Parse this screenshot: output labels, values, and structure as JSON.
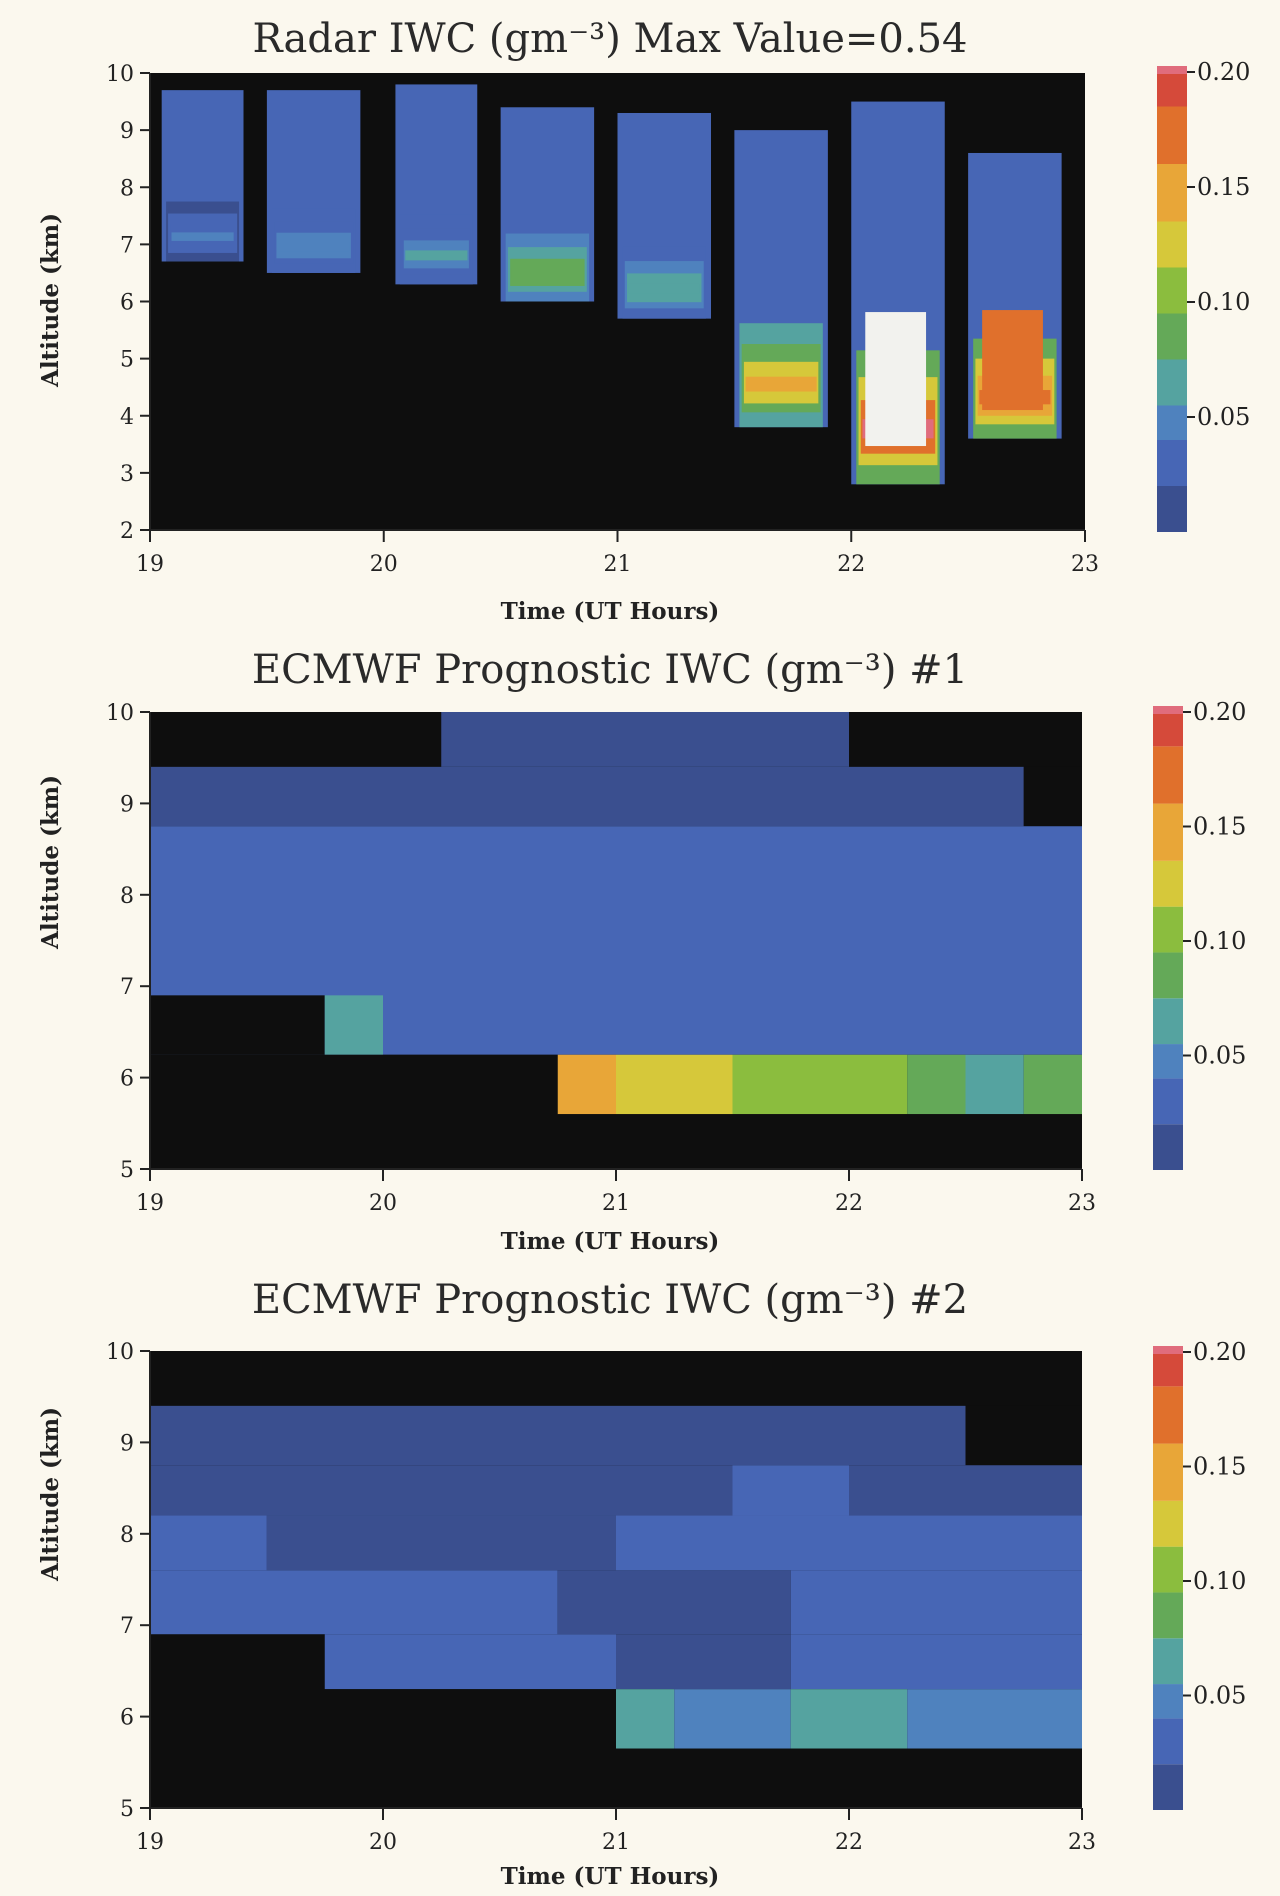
{
  "chart_data": [
    {
      "type": "heatmap",
      "title": "Radar IWC (gm⁻³)   Max Value=0.54",
      "xlabel": "Time (UT Hours)",
      "ylabel": "Altitude (km)",
      "xlim": [
        19,
        23
      ],
      "ylim": [
        2,
        10
      ],
      "xticks": [
        "19",
        "20",
        "21",
        "22",
        "23"
      ],
      "yticks": [
        "2",
        "3",
        "4",
        "5",
        "6",
        "7",
        "8",
        "9",
        "10"
      ],
      "colorbar": {
        "range": [
          0,
          0.2
        ],
        "ticks": [
          "0.05",
          "0.10",
          "0.15",
          "0.20"
        ]
      },
      "max_value": 0.54,
      "bands": [
        {
          "x0": 19.05,
          "x1": 19.4,
          "ybase": 6.7,
          "ytop": 9.7,
          "core": 0.03,
          "peak": 0.04
        },
        {
          "x0": 19.5,
          "x1": 19.9,
          "ybase": 6.5,
          "ytop": 9.7,
          "core": 0.03,
          "peak": 0.05
        },
        {
          "x0": 20.05,
          "x1": 20.4,
          "ybase": 6.3,
          "ytop": 9.8,
          "core": 0.03,
          "peak": 0.06
        },
        {
          "x0": 20.5,
          "x1": 20.9,
          "ybase": 6.0,
          "ytop": 9.4,
          "core": 0.03,
          "peak": 0.09
        },
        {
          "x0": 21.0,
          "x1": 21.4,
          "ybase": 5.7,
          "ytop": 9.3,
          "core": 0.03,
          "peak": 0.07
        },
        {
          "x0": 21.5,
          "x1": 21.9,
          "ybase": 3.8,
          "ytop": 9.0,
          "core": 0.03,
          "peak": 0.14
        },
        {
          "x0": 22.0,
          "x1": 22.4,
          "ybase": 2.8,
          "ytop": 9.5,
          "core": 0.03,
          "peak": 0.2
        },
        {
          "x0": 22.5,
          "x1": 22.9,
          "ybase": 3.6,
          "ytop": 8.6,
          "core": 0.03,
          "peak": 0.18
        }
      ]
    },
    {
      "type": "heatmap",
      "title": "ECMWF Prognostic IWC (gm⁻³) #1",
      "xlabel": "Time (UT Hours)",
      "ylabel": "Altitude (km)",
      "xlim": [
        19,
        23
      ],
      "ylim": [
        5,
        10
      ],
      "xticks": [
        "19",
        "20",
        "21",
        "22",
        "23"
      ],
      "yticks": [
        "5",
        "6",
        "7",
        "8",
        "9",
        "10"
      ],
      "colorbar": {
        "range": [
          0,
          0.2
        ],
        "ticks": [
          "0.05",
          "0.10",
          "0.15",
          "0.20"
        ]
      },
      "cells": [
        {
          "x0": 19,
          "x1": 20.25,
          "y0": 9.4,
          "y1": 10,
          "v": null
        },
        {
          "x0": 20.25,
          "x1": 22.0,
          "y0": 9.4,
          "y1": 10,
          "v": 0.01
        },
        {
          "x0": 22.0,
          "x1": 23,
          "y0": 9.4,
          "y1": 10,
          "v": null
        },
        {
          "x0": 19,
          "x1": 22.75,
          "y0": 8.75,
          "y1": 9.4,
          "v": 0.01
        },
        {
          "x0": 22.75,
          "x1": 23,
          "y0": 8.75,
          "y1": 9.4,
          "v": null
        },
        {
          "x0": 19,
          "x1": 23,
          "y0": 6.25,
          "y1": 8.75,
          "v": 0.025
        },
        {
          "x0": 19,
          "x1": 19.75,
          "y0": 6.25,
          "y1": 6.9,
          "v": null
        },
        {
          "x0": 19.75,
          "x1": 20.0,
          "y0": 6.25,
          "y1": 6.9,
          "v": 0.06
        },
        {
          "x0": 19,
          "x1": 20.75,
          "y0": 5,
          "y1": 6.25,
          "v": null
        },
        {
          "x0": 20.75,
          "x1": 21.0,
          "y0": 5.6,
          "y1": 6.25,
          "v": 0.14
        },
        {
          "x0": 21.0,
          "x1": 21.5,
          "y0": 5.6,
          "y1": 6.25,
          "v": 0.12
        },
        {
          "x0": 21.5,
          "x1": 22.25,
          "y0": 5.6,
          "y1": 6.25,
          "v": 0.1
        },
        {
          "x0": 22.25,
          "x1": 22.5,
          "y0": 5.6,
          "y1": 6.25,
          "v": 0.085
        },
        {
          "x0": 22.5,
          "x1": 22.75,
          "y0": 5.6,
          "y1": 6.25,
          "v": 0.07
        },
        {
          "x0": 22.75,
          "x1": 23,
          "y0": 5.6,
          "y1": 6.25,
          "v": 0.09
        },
        {
          "x0": 20.75,
          "x1": 23,
          "y0": 5,
          "y1": 5.6,
          "v": null
        }
      ]
    },
    {
      "type": "heatmap",
      "title": "ECMWF Prognostic IWC (gm⁻³) #2",
      "xlabel": "Time (UT Hours)",
      "ylabel": "Altitude (km)",
      "xlim": [
        19,
        23
      ],
      "ylim": [
        5,
        10
      ],
      "xticks": [
        "19",
        "20",
        "21",
        "22",
        "23"
      ],
      "yticks": [
        "5",
        "6",
        "7",
        "8",
        "9",
        "10"
      ],
      "colorbar": {
        "range": [
          0,
          0.2
        ],
        "ticks": [
          "0.05",
          "0.10",
          "0.15",
          "0.20"
        ]
      },
      "cells": [
        {
          "x0": 19,
          "x1": 23,
          "y0": 9.4,
          "y1": 10,
          "v": null
        },
        {
          "x0": 19,
          "x1": 22.5,
          "y0": 8.75,
          "y1": 9.4,
          "v": 0.01
        },
        {
          "x0": 22.5,
          "x1": 23,
          "y0": 8.75,
          "y1": 9.4,
          "v": null
        },
        {
          "x0": 19,
          "x1": 21.5,
          "y0": 8.2,
          "y1": 8.75,
          "v": 0.01
        },
        {
          "x0": 21.5,
          "x1": 22.0,
          "y0": 8.2,
          "y1": 8.75,
          "v": 0.025
        },
        {
          "x0": 22.0,
          "x1": 23,
          "y0": 8.2,
          "y1": 8.75,
          "v": 0.01
        },
        {
          "x0": 19,
          "x1": 19.5,
          "y0": 7.6,
          "y1": 8.2,
          "v": 0.025
        },
        {
          "x0": 19.5,
          "x1": 21.0,
          "y0": 7.6,
          "y1": 8.2,
          "v": 0.01
        },
        {
          "x0": 21.0,
          "x1": 23,
          "y0": 7.6,
          "y1": 8.2,
          "v": 0.025
        },
        {
          "x0": 19,
          "x1": 20.75,
          "y0": 6.9,
          "y1": 7.6,
          "v": 0.025
        },
        {
          "x0": 20.75,
          "x1": 21.75,
          "y0": 6.9,
          "y1": 7.6,
          "v": 0.01
        },
        {
          "x0": 21.75,
          "x1": 23,
          "y0": 6.9,
          "y1": 7.6,
          "v": 0.025
        },
        {
          "x0": 19,
          "x1": 19.75,
          "y0": 6.3,
          "y1": 6.9,
          "v": null
        },
        {
          "x0": 19.75,
          "x1": 21.0,
          "y0": 6.3,
          "y1": 6.9,
          "v": 0.025
        },
        {
          "x0": 21.0,
          "x1": 21.75,
          "y0": 6.3,
          "y1": 6.9,
          "v": 0.01
        },
        {
          "x0": 21.75,
          "x1": 23,
          "y0": 6.3,
          "y1": 6.9,
          "v": 0.025
        },
        {
          "x0": 19,
          "x1": 21.0,
          "y0": 5,
          "y1": 6.3,
          "v": null
        },
        {
          "x0": 21.0,
          "x1": 21.25,
          "y0": 5.65,
          "y1": 6.3,
          "v": 0.065
        },
        {
          "x0": 21.25,
          "x1": 21.5,
          "y0": 5.65,
          "y1": 6.3,
          "v": 0.05
        },
        {
          "x0": 21.5,
          "x1": 21.75,
          "y0": 5.65,
          "y1": 6.3,
          "v": 0.04
        },
        {
          "x0": 21.75,
          "x1": 22.25,
          "y0": 5.65,
          "y1": 6.3,
          "v": 0.055
        },
        {
          "x0": 22.25,
          "x1": 23,
          "y0": 5.65,
          "y1": 6.3,
          "v": 0.04
        },
        {
          "x0": 21.0,
          "x1": 23,
          "y0": 5,
          "y1": 5.65,
          "v": null
        }
      ]
    }
  ]
}
